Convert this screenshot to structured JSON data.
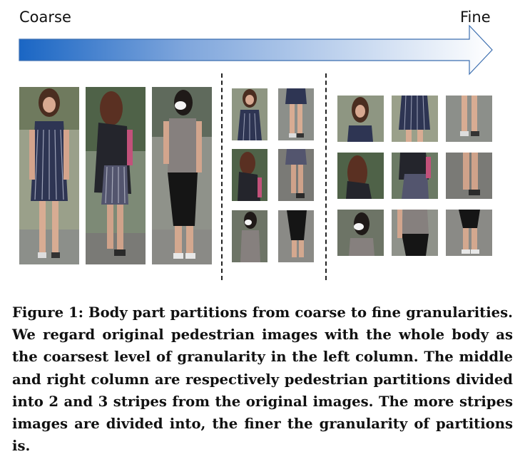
{
  "figure": {
    "left_label": "Coarse",
    "right_label": "Fine",
    "arrow_colors": {
      "start": "#1a66c4",
      "end": "#ffffff",
      "border": "#3d6fb0"
    },
    "caption": "Figure 1: Body part partitions from coarse to fine granularities. We regard original pedestrian images with the whole body as the coarsest level of granularity in the left column. The middle and right column are respectively pedestrian partitions divided into 2 and 3 stripes from the original images. The more stripes images are divided into, the finer the granularity of partitions is."
  },
  "photo_description": [
    "pedestrian-1: woman, long brown hair, striped navy dress, sandals",
    "pedestrian-2: woman, long hair, dark cardigan over striped dress",
    "pedestrian-3: woman, white face mask, grey top, black leggings"
  ]
}
